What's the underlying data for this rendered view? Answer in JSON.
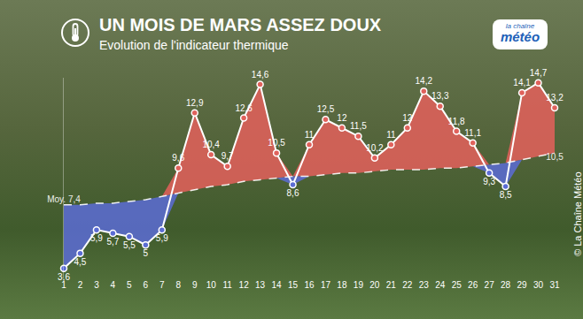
{
  "chart_data": {
    "type": "line",
    "title": "UN MOIS DE MARS ASSEZ DOUX",
    "subtitle": "Evolution de l'indicateur thermique",
    "logo": [
      "la chaîne",
      "météo"
    ],
    "source": "© La Chaîne Météo",
    "x": [
      1,
      2,
      3,
      4,
      5,
      6,
      7,
      8,
      9,
      10,
      11,
      12,
      13,
      14,
      15,
      16,
      17,
      18,
      19,
      20,
      21,
      22,
      23,
      24,
      25,
      26,
      27,
      28,
      29,
      30,
      31
    ],
    "xlim": [
      1,
      31
    ],
    "xticks": [
      1,
      2,
      3,
      4,
      5,
      6,
      7,
      8,
      9,
      10,
      11,
      12,
      13,
      14,
      15,
      16,
      17,
      18,
      19,
      20,
      21,
      22,
      23,
      24,
      25,
      26,
      27,
      28,
      29,
      30,
      31
    ],
    "ylim": [
      3,
      15
    ],
    "tick_labels": "x",
    "grid": false,
    "data_labels": true,
    "series": [
      {
        "color": "#ffffff",
        "marker": "circle",
        "line_style": "solid",
        "values": [
          3.6,
          4.5,
          5.9,
          5.7,
          5.5,
          5,
          5.9,
          9.6,
          12.9,
          10.4,
          9.7,
          12.6,
          14.6,
          10.5,
          8.6,
          11,
          12.5,
          12,
          11.5,
          10.2,
          11,
          12,
          14.2,
          13.3,
          11.8,
          11.1,
          9.3,
          8.5,
          14.1,
          14.7,
          13.2
        ],
        "value_labels": [
          "3,6",
          "4,5",
          "5,9",
          "5,7",
          "5,5",
          "5",
          "5,9",
          "9,6",
          "12,9",
          "10,4",
          "9,7",
          "12,6",
          "14,6",
          "10,5",
          "8,6",
          "11",
          "12,5",
          "12",
          "11,5",
          "10,2",
          "11",
          "12",
          "14,2",
          "13,3",
          "11,8",
          "11,1",
          "9,3",
          "8,5",
          "14,1",
          "14,7",
          "13,2"
        ]
      },
      {
        "color": "#ffffff",
        "line_style": "dash",
        "values": [
          7.4,
          7.4,
          7.5,
          7.5,
          7.6,
          7.7,
          7.9,
          8.1,
          8.3,
          8.5,
          8.6,
          8.8,
          8.9,
          9.0,
          9.1,
          9.1,
          9.2,
          9.3,
          9.3,
          9.4,
          9.5,
          9.5,
          9.5,
          9.6,
          9.6,
          9.7,
          9.8,
          9.9,
          10.1,
          10.3,
          10.5
        ],
        "value_labels": [
          "Moy. 7,4",
          null,
          null,
          null,
          null,
          null,
          null,
          null,
          null,
          null,
          null,
          null,
          null,
          null,
          null,
          null,
          null,
          null,
          null,
          null,
          null,
          null,
          null,
          null,
          null,
          null,
          null,
          null,
          null,
          null,
          "10,5"
        ]
      }
    ]
  }
}
